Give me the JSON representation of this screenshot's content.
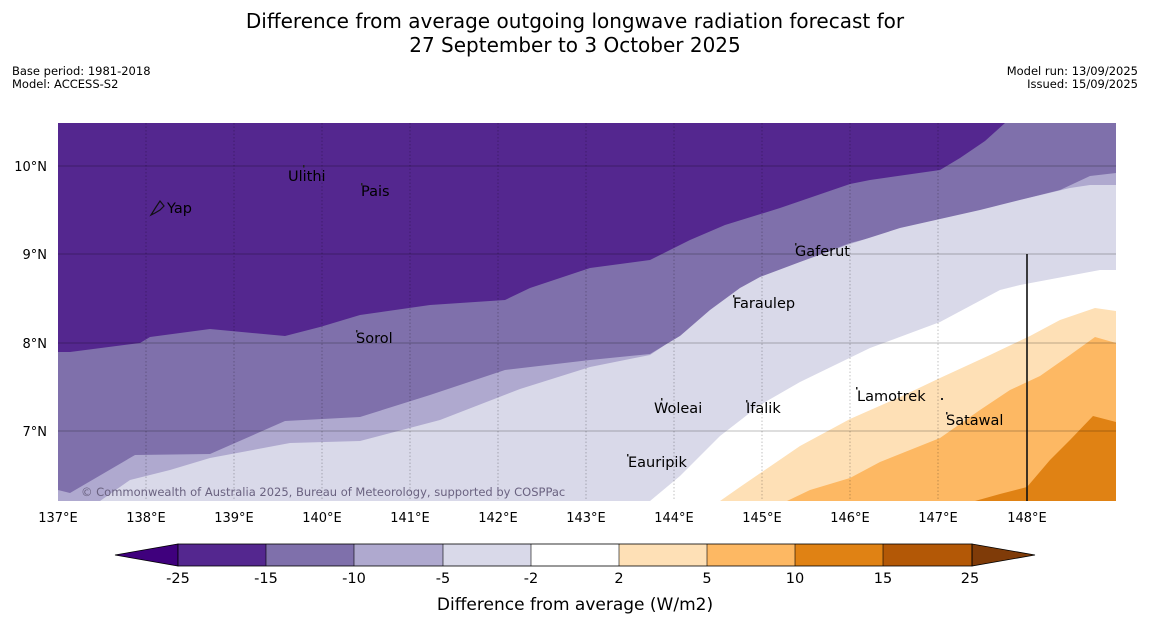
{
  "header": {
    "title_line1": "Difference from average outgoing longwave radiation forecast for",
    "title_line2": "27 September to 3 October 2025",
    "base_period": "Base period: 1981-2018",
    "model": "Model: ACCESS-S2",
    "model_run": "Model run: 13/09/2025",
    "issued": "Issued: 15/09/2025"
  },
  "map": {
    "lon_labels": [
      "137°E",
      "138°E",
      "139°E",
      "140°E",
      "141°E",
      "142°E",
      "143°E",
      "144°E",
      "145°E",
      "146°E",
      "147°E",
      "148°E"
    ],
    "lat_labels": [
      "10°N",
      "9°N",
      "8°N",
      "7°N"
    ],
    "places": [
      {
        "name": "Yap",
        "lon": 138.2,
        "lat": 9.5
      },
      {
        "name": "Ulithi",
        "lon": 139.75,
        "lat": 9.9
      },
      {
        "name": "Pais",
        "lon": 140.45,
        "lat": 9.75
      },
      {
        "name": "Gaferut",
        "lon": 145.4,
        "lat": 9.2
      },
      {
        "name": "Faraulep",
        "lon": 144.7,
        "lat": 8.6
      },
      {
        "name": "Sorol",
        "lon": 140.4,
        "lat": 8.1
      },
      {
        "name": "Woleai",
        "lon": 143.9,
        "lat": 7.4
      },
      {
        "name": "Ifalik",
        "lon": 144.8,
        "lat": 7.4
      },
      {
        "name": "Lamotrek",
        "lon": 146.05,
        "lat": 7.4
      },
      {
        "name": "Satawal",
        "lon": 147.1,
        "lat": 7.1
      },
      {
        "name": "Eauripik",
        "lon": 143.45,
        "lat": 6.8
      }
    ],
    "copyright": "© Commonwealth of Australia 2025, Bureau of Meteorology, supported by COSPPac"
  },
  "legend": {
    "ticks": [
      "-25",
      "-15",
      "-10",
      "-5",
      "-2",
      "2",
      "5",
      "10",
      "15",
      "25"
    ],
    "colors": [
      "#3f007d",
      "#54278f",
      "#7f70ab",
      "#afa9cf",
      "#d9d9e9",
      "#ffffff",
      "#fee0b6",
      "#fdb863",
      "#e08214",
      "#b35806",
      "#7f3b08"
    ],
    "label": "Difference from average (W/m2)"
  }
}
